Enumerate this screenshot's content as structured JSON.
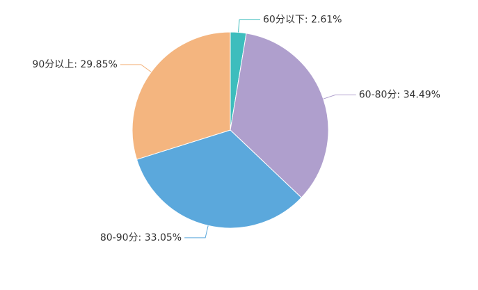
{
  "chart_data": {
    "type": "pie",
    "value_labels": [
      "60分以下: 2.61%",
      "60-80分: 34.49%",
      "80-90分: 33.05%",
      "90分以上: 29.85%"
    ],
    "values": [
      2.61,
      34.49,
      33.05,
      29.85
    ],
    "colors": [
      "#3dbdbd",
      "#af9fcd",
      "#5ba8dc",
      "#f4b57f"
    ]
  }
}
